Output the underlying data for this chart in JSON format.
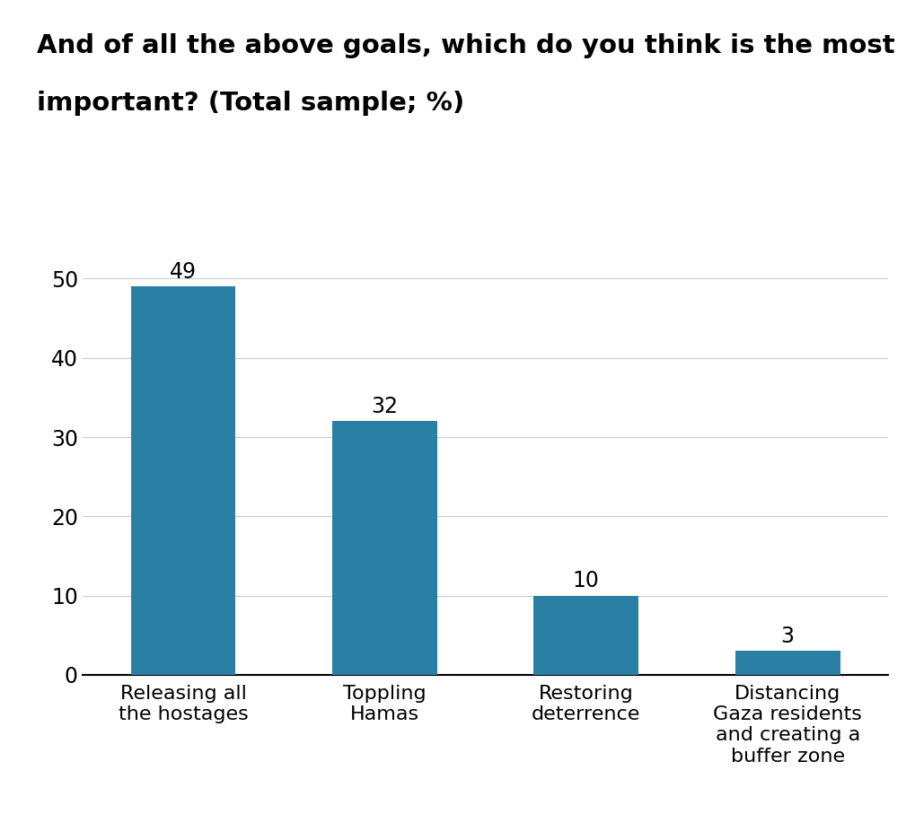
{
  "title_line1": "And of all the above goals, which do you think is the most",
  "title_line2": "important? (Total sample; %)",
  "categories": [
    "Releasing all\nthe hostages",
    "Toppling\nHamas",
    "Restoring\ndeterrence",
    "Distancing\nGaza residents\nand creating a\nbuffer zone"
  ],
  "values": [
    49,
    32,
    10,
    3
  ],
  "bar_color": "#2a7fa5",
  "ylim": [
    0,
    54
  ],
  "yticks": [
    0,
    10,
    20,
    30,
    40,
    50
  ],
  "title_fontsize": 21,
  "tick_fontsize": 17,
  "label_fontsize": 16,
  "value_fontsize": 17,
  "background_color": "#ffffff",
  "bar_width": 0.52
}
